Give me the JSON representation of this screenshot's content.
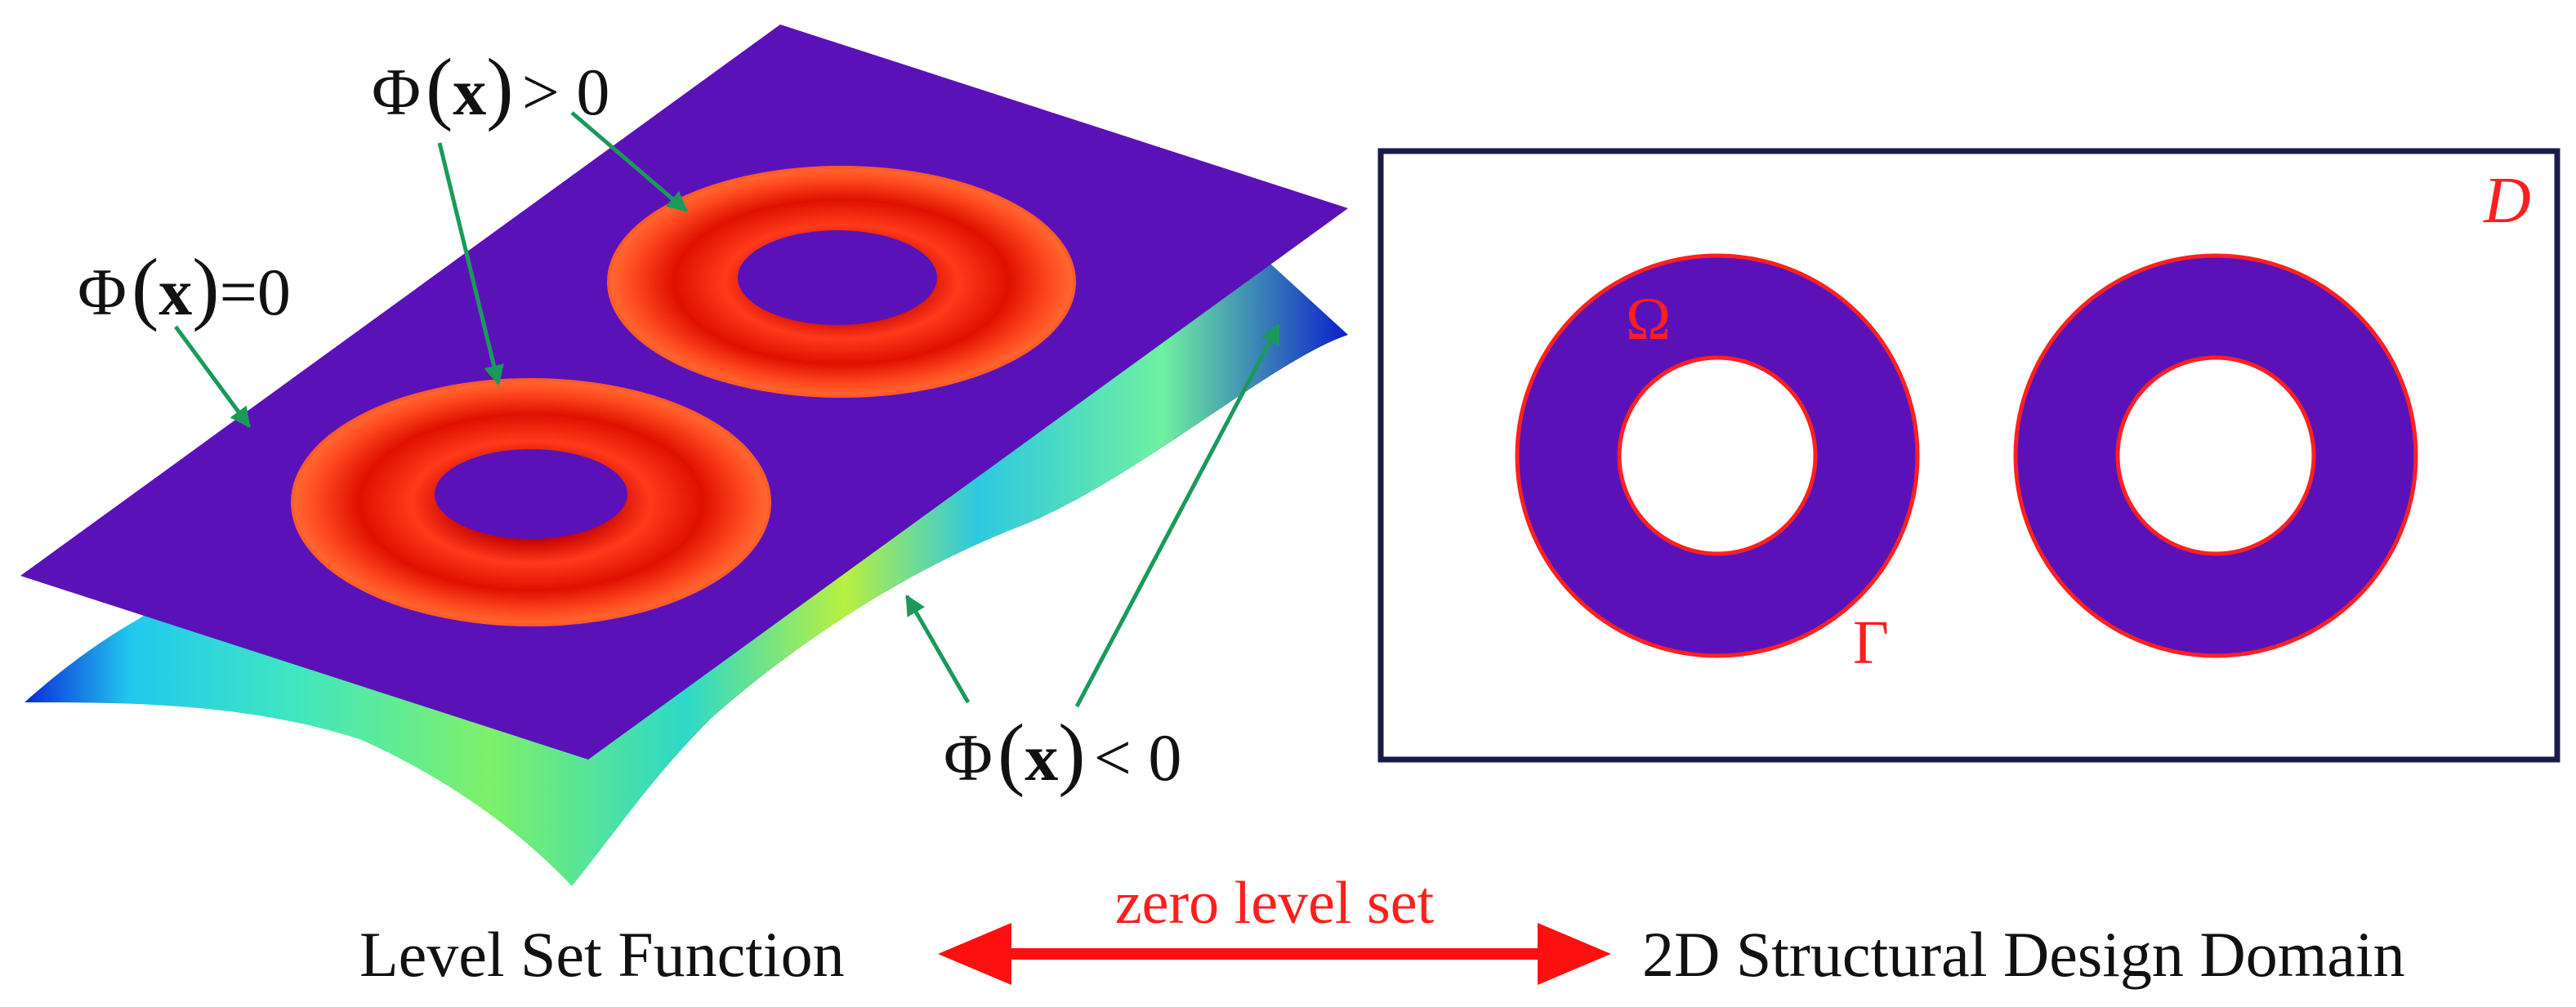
{
  "left_panel": {
    "phi_pos": {
      "prefix": "Φ",
      "var": "x",
      "rel": "> 0"
    },
    "phi_zero": {
      "prefix": "Φ",
      "var": "x",
      "rel": "=0"
    },
    "phi_neg": {
      "prefix": "Φ",
      "var": "x",
      "rel": "< 0"
    }
  },
  "right_panel": {
    "domain_label": "D",
    "omega_label": "Ω",
    "gamma_label": "Γ"
  },
  "captions": {
    "left": "Level Set Function",
    "middle": "zero level set",
    "right": "2D Structural Design Domain"
  },
  "colors": {
    "plane": "#5a12b8",
    "torus_outer": "#ff3a1a",
    "torus_inner": "#c80000",
    "arrow_green": "#1a9a5a",
    "arrow_red": "#ff1010",
    "boundary_red": "#ff2020",
    "frame": "#1a1a4a"
  }
}
